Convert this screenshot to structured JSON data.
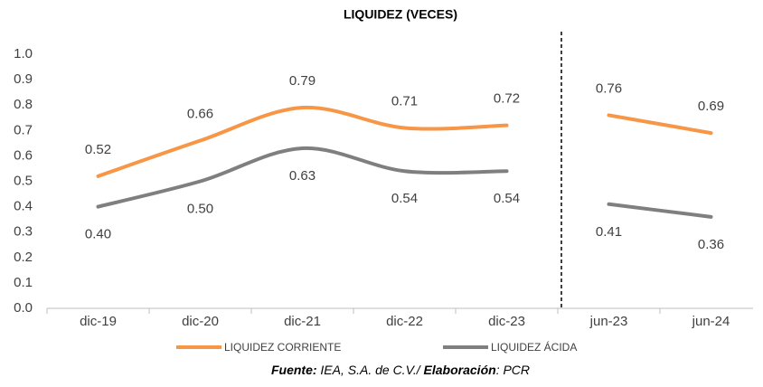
{
  "chart_data": {
    "type": "line",
    "title": "LIQUIDEZ (VECES)",
    "categories": [
      "dic-19",
      "dic-20",
      "dic-21",
      "dic-22",
      "dic-23",
      "jun-23",
      "jun-24"
    ],
    "series": [
      {
        "name": "LIQUIDEZ CORRIENTE",
        "color": "#f79646",
        "values": [
          0.52,
          0.66,
          0.79,
          0.71,
          0.72,
          0.76,
          0.69
        ],
        "value_labels": [
          "0.52",
          "0.66",
          "0.79",
          "0.71",
          "0.72",
          "0.76",
          "0.69"
        ]
      },
      {
        "name": "LIQUIDEZ ÁCIDA",
        "color": "#7f7f7f",
        "values": [
          0.4,
          0.5,
          0.63,
          0.54,
          0.54,
          0.41,
          0.36
        ],
        "value_labels": [
          "0.40",
          "0.50",
          "0.63",
          "0.54",
          "0.54",
          "0.41",
          "0.36"
        ]
      }
    ],
    "ylim": [
      0,
      1
    ],
    "yticks": [
      {
        "value": 0,
        "label": "0.0"
      },
      0.1,
      0.2,
      0.3,
      0.4,
      0.5,
      0.6,
      0.7,
      0.8,
      0.9,
      {
        "value": 1,
        "label": "1.0"
      }
    ],
    "grid": false,
    "divider": {
      "after_category": "dic-23",
      "style": "dashed"
    },
    "legend": "bottom",
    "source": {
      "label1": "Fuente:",
      "text1": "IEA, S.A. de C.V./",
      "label2": "Elaboración",
      "text2": ": PCR"
    }
  }
}
